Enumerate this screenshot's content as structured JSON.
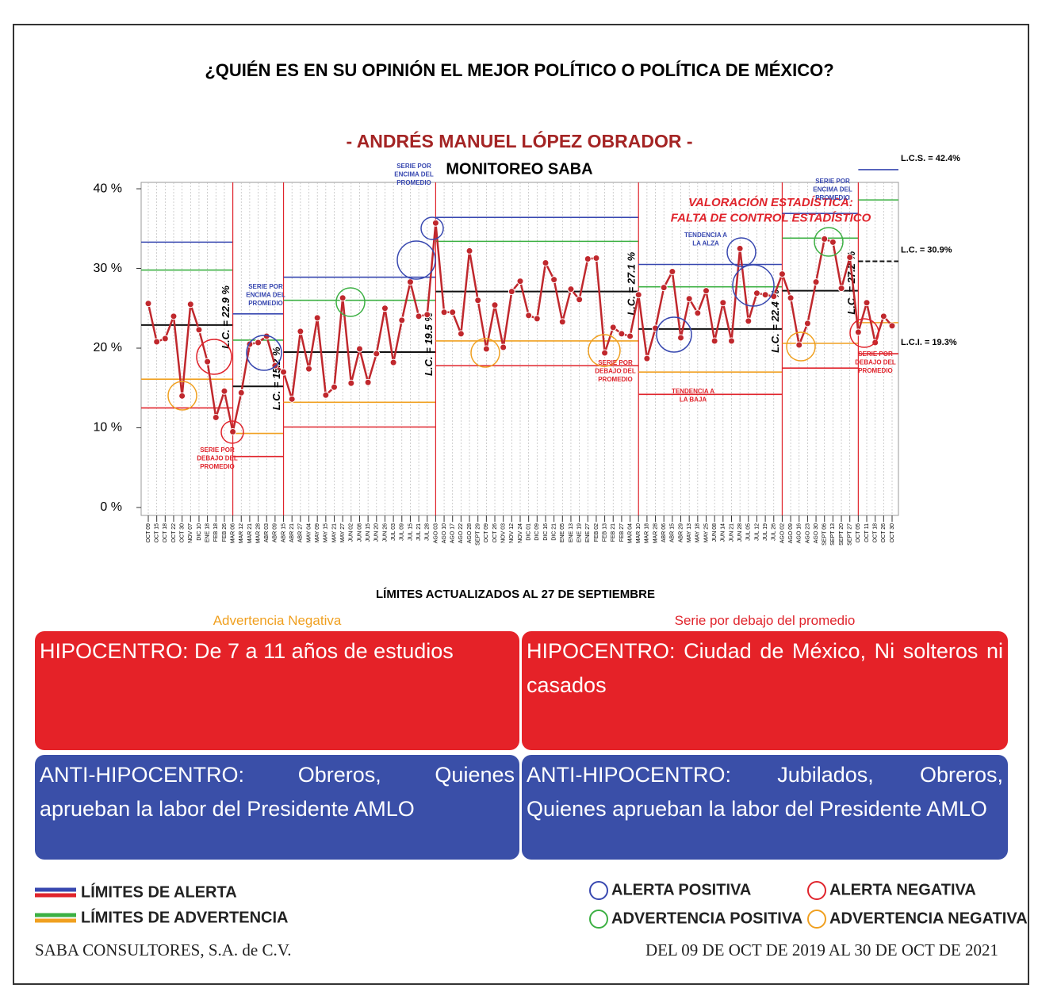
{
  "chart_data": {
    "type": "line",
    "title": "¿QUIÉN ES EN SU OPINIÓN EL MEJOR POLÍTICO O POLÍTICA DE MÉXICO?",
    "subtitle": "- ANDRÉS MANUEL LÓPEZ OBRADOR -",
    "chart_label": "MONITOREO SABA",
    "categories": [
      "OCT 09",
      "OCT 15",
      "OCT 18",
      "OCT 22",
      "OCT 30",
      "NOV 07",
      "DIC 10",
      "ENE 18",
      "FEB 18",
      "FEB 26",
      "MAR 06",
      "MAR 12",
      "MAR 21",
      "MAR 28",
      "ABR 03",
      "ABR 09",
      "ABR 15",
      "ABR 21",
      "ABR 27",
      "MAY 04",
      "MAY 09",
      "MAY 15",
      "MAY 21",
      "MAY 27",
      "JUN 02",
      "JUN 08",
      "JUN 15",
      "JUN 20",
      "JUN 26",
      "JUL 03",
      "JUL 09",
      "JUL 15",
      "JUL 21",
      "JUL 28",
      "AGO 03",
      "AGO 10",
      "AGO 17",
      "AGO 22",
      "AGO 28",
      "SEPT 29",
      "OCT 09",
      "OCT 26",
      "NOV 03",
      "NOV 12",
      "NOV 24",
      "DIC 01",
      "DIC 09",
      "DIC 16",
      "DIC 21",
      "ENE 05",
      "ENE 13",
      "ENE 19",
      "ENE 27",
      "FEB 02",
      "FEB 13",
      "FEB 21",
      "FEB 27",
      "MAR 04",
      "MAR 10",
      "MAR 18",
      "MAR 28",
      "ABR 06",
      "ABR 15",
      "ABR 29",
      "MAY 13",
      "MAY 18",
      "MAY 25",
      "JUN 08",
      "JUN 14",
      "JUN 21",
      "JUN 28",
      "JUL 05",
      "JUL 12",
      "JUL 19",
      "JUL 26",
      "AGO 02",
      "AGO 09",
      "AGO 16",
      "AGO 23",
      "AGO 30",
      "SEPT 06",
      "SEPT 13",
      "SEPT 20",
      "SEPT 27",
      "OCT 05",
      "OCT 11",
      "OCT 18",
      "OCT 26",
      "OCT 30"
    ],
    "series": [
      {
        "name": "AMLO",
        "color": "#c0282d",
        "values": [
          25.6,
          20.8,
          21.2,
          24.0,
          14.0,
          25.5,
          22.3,
          18.3,
          11.3,
          14.6,
          9.5,
          14.4,
          20.5,
          20.7,
          21.5,
          17.8,
          17.0,
          13.6,
          22.1,
          17.4,
          23.8,
          14.1,
          15.1,
          26.3,
          15.6,
          19.9,
          15.7,
          19.3,
          25.0,
          18.2,
          23.5,
          28.3,
          24.0,
          24.2,
          35.7,
          24.5,
          24.5,
          21.8,
          32.2,
          26.0,
          19.9,
          25.4,
          20.1,
          27.1,
          28.4,
          24.1,
          23.7,
          30.7,
          28.6,
          23.3,
          27.4,
          26.1,
          31.2,
          31.3,
          19.4,
          22.6,
          21.8,
          21.5,
          26.7,
          18.7,
          22.5,
          27.6,
          29.6,
          21.3,
          26.2,
          24.4,
          27.2,
          20.9,
          25.7,
          20.9,
          32.5,
          23.4,
          26.9,
          26.7,
          26.5,
          29.3,
          26.3,
          20.4,
          23.1,
          28.3,
          33.7,
          33.3,
          27.5,
          31.4,
          22.0,
          25.7,
          20.7,
          24.0,
          22.8
        ]
      }
    ],
    "segments": [
      {
        "start": 0,
        "end": 10,
        "lc": 22.9,
        "lc_label": "L.C. = 22.9 %",
        "alert_upper": 33.3,
        "alert_lower": 12.5,
        "warn_upper": 29.8,
        "warn_lower": 16.1
      },
      {
        "start": 10,
        "end": 16,
        "lc": 15.2,
        "lc_label": "L.C. = 15.2 %",
        "alert_upper": 24.3,
        "alert_lower": 6.4,
        "warn_upper": 21.0,
        "warn_lower": 9.3
      },
      {
        "start": 16,
        "end": 34,
        "lc": 19.5,
        "lc_label": "L.C. = 19.5 %",
        "alert_upper": 28.9,
        "alert_lower": 10.1,
        "warn_upper": 26.0,
        "warn_lower": 13.2
      },
      {
        "start": 34,
        "end": 58,
        "lc": 27.1,
        "lc_label": "L.C. = 27.1 %",
        "alert_upper": 36.4,
        "alert_lower": 17.8,
        "warn_upper": 33.4,
        "warn_lower": 20.9
      },
      {
        "start": 58,
        "end": 75,
        "lc": 22.4,
        "lc_label": "L.C. = 22.4 %",
        "alert_upper": 30.5,
        "alert_lower": 14.2,
        "warn_upper": 27.7,
        "warn_lower": 17.0
      },
      {
        "start": 75,
        "end": 84,
        "lc": 27.2,
        "lc_label": "L.C. = 27.2 %",
        "alert_upper": 36.9,
        "alert_lower": 17.5,
        "warn_upper": 33.8,
        "warn_lower": 20.6
      },
      {
        "start": 84,
        "end": 88,
        "lc": 30.9,
        "lc_label": "L.C. = 30.9%",
        "alert_upper": 42.4,
        "alert_lower": 19.3,
        "warn_upper": 38.6,
        "warn_lower": 23.2
      }
    ],
    "right_labels": [
      {
        "value": 42.4,
        "label": "L.C.S. =  42.4%"
      },
      {
        "value": 30.9,
        "label": "L.C. =  30.9%"
      },
      {
        "value": 19.3,
        "label": "L.C.I. =  19.3%"
      }
    ],
    "ylim": [
      0,
      41
    ],
    "yticks": [
      {
        "value": 0,
        "label": "0 %"
      },
      {
        "value": 10,
        "label": "10 %"
      },
      {
        "value": 20,
        "label": "20 %"
      },
      {
        "value": 30,
        "label": "30 %"
      },
      {
        "value": 40,
        "label": "40 %"
      }
    ],
    "limit_colors": {
      "alert_upper": "#3848b0",
      "alert_lower": "#e0242c",
      "warn_upper": "#3cb043",
      "warn_lower": "#f0a020",
      "lc": "#111111"
    },
    "annotations": [
      {
        "lines": [
          "VALORACIÓN ESTADÍSTICA:",
          "FALTA DE CONTROL ESTADÍSTICO"
        ],
        "color": "#e0242c"
      },
      {
        "lines": [
          "SERIE POR",
          "DEBAJO DEL",
          "PROMEDIO"
        ],
        "color": "#e0242c"
      },
      {
        "lines": [
          "SERIE POR",
          "ENCIMA DEL",
          "PROMEDIO"
        ],
        "color": "#3848b0"
      },
      {
        "lines": [
          "SERIE POR",
          "ENCIMA DEL",
          "PROMEDIO"
        ],
        "color": "#3848b0"
      },
      {
        "lines": [
          "SERIE POR",
          "DEBAJO DEL",
          "PROMEDIO"
        ],
        "color": "#e0242c"
      },
      {
        "lines": [
          "TENDENCIA A",
          "LA ALZA"
        ],
        "color": "#3848b0"
      },
      {
        "lines": [
          "TENDENCIA A",
          "LA BAJA"
        ],
        "color": "#e0242c"
      },
      {
        "lines": [
          "SERIE POR",
          "ENCIMA DEL",
          "PROMEDIO"
        ],
        "color": "#3848b0"
      },
      {
        "lines": [
          "SERIE POR",
          "DEBAJO DEL",
          "PROMEDIO"
        ],
        "color": "#e0242c"
      }
    ],
    "limits_note": "LÍMITES ACTUALIZADOS AL  27  DE  SEPTIEMBRE"
  },
  "panels": [
    {
      "caption": "Advertencia Negativa",
      "caption_color": "#f0a020",
      "hipocentro": "HIPOCENTRO: De 7 a 11 años de estudios",
      "anti": "ANTI-HIPOCENTRO: Obreros, Quienes aprueban la labor del Presidente AMLO"
    },
    {
      "caption": "Serie por debajo del promedio",
      "caption_color": "#e0242c",
      "hipocentro": "HIPOCENTRO: Ciudad de México, Ni solteros ni casados",
      "anti": "ANTI-HIPOCENTRO: Jubilados, Obreros, Quienes aprueban la labor del Presidente AMLO"
    }
  ],
  "legend": {
    "lines": [
      {
        "label": "LÍMITES DE ALERTA",
        "colors": [
          "#3848b0",
          "#e0242c"
        ]
      },
      {
        "label": "LÍMITES DE ADVERTENCIA",
        "colors": [
          "#3cb043",
          "#f0a020"
        ]
      }
    ],
    "circles": [
      {
        "label": "ALERTA POSITIVA",
        "color": "#3848b0"
      },
      {
        "label": "ALERTA NEGATIVA",
        "color": "#e0242c"
      },
      {
        "label": "ADVERTENCIA POSITIVA",
        "color": "#3cb043"
      },
      {
        "label": "ADVERTENCIA NEGATIVA",
        "color": "#f0a020"
      }
    ]
  },
  "footer": {
    "left": "SABA CONSULTORES, S.A. de C.V.",
    "right": "DEL 09 DE OCT DE 2019 AL 30 DE OCT DE 2021"
  }
}
